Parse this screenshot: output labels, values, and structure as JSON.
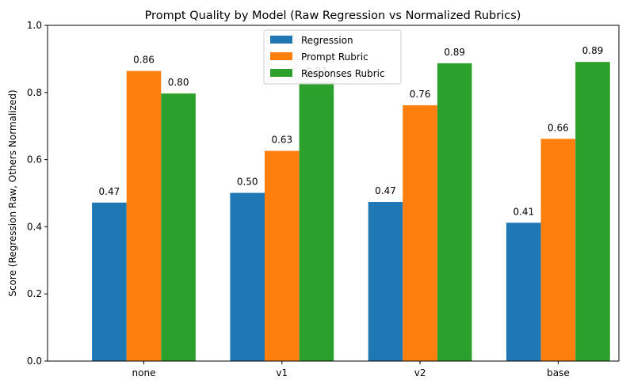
{
  "chart_data": {
    "type": "bar",
    "title": "Prompt Quality by Model (Raw Regression vs Normalized Rubrics)",
    "xlabel": "",
    "ylabel": "Score (Regression Raw, Others Normalized)",
    "categories": [
      "none",
      "v1",
      "v2",
      "base"
    ],
    "series": [
      {
        "name": "Regression",
        "color": "#1f77b4",
        "values": [
          0.472,
          0.501,
          0.474,
          0.412
        ],
        "labels": [
          "0.47",
          "0.50",
          "0.47",
          "0.41"
        ]
      },
      {
        "name": "Prompt Rubric",
        "color": "#ff7f0e",
        "values": [
          0.864,
          0.626,
          0.762,
          0.662
        ],
        "labels": [
          "0.86",
          "0.63",
          "0.76",
          "0.66"
        ]
      },
      {
        "name": "Responses Rubric",
        "color": "#2ca02c",
        "values": [
          0.797,
          0.83,
          0.887,
          0.891
        ],
        "labels": [
          "0.80",
          "0.83",
          "0.89",
          "0.89"
        ]
      }
    ],
    "ylim": [
      0,
      1.0
    ],
    "yticks": [
      "0.0",
      "0.2",
      "0.4",
      "0.6",
      "0.8",
      "1.0"
    ],
    "grid": false,
    "legend_position": "top-center"
  }
}
